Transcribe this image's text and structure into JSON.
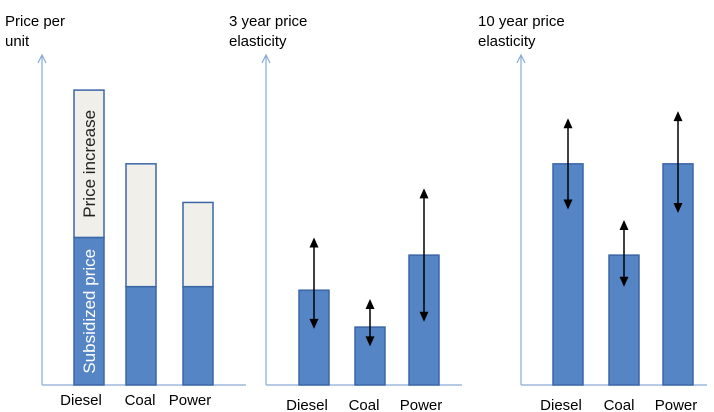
{
  "colors": {
    "bar_fill": "#5585c5",
    "bar_stroke": "#3b66a6",
    "increase_fill": "#f0efea",
    "axis": "#8aaad6",
    "arrow": "#000000",
    "inbar_text_light": "#ffffff",
    "inbar_text_dark": "#222222"
  },
  "chart_data": [
    {
      "type": "bar",
      "stacked": true,
      "ylabel": "Price per unit",
      "categories": [
        "Diesel",
        "Coal",
        "Power"
      ],
      "series": [
        {
          "name": "Subsidized price",
          "values": [
            4.2,
            2.8,
            2.8
          ]
        },
        {
          "name": "Price increase",
          "values": [
            4.2,
            3.5,
            2.4
          ]
        }
      ],
      "ylim": [
        0,
        9.4
      ],
      "grid": false
    },
    {
      "type": "bar",
      "ylabel": "3 year price elasticity",
      "categories": [
        "Diesel",
        "Coal",
        "Power"
      ],
      "values": [
        2.7,
        1.65,
        3.7
      ],
      "ranges": [
        [
          1.6,
          4.2
        ],
        [
          1.1,
          2.45
        ],
        [
          1.8,
          5.6
        ]
      ],
      "ylim": [
        0,
        9.4
      ],
      "grid": false
    },
    {
      "type": "bar",
      "ylabel": "10 year price elasticity",
      "categories": [
        "Diesel",
        "Coal",
        "Power"
      ],
      "values": [
        6.3,
        3.7,
        6.3
      ],
      "ranges": [
        [
          5.0,
          7.6
        ],
        [
          2.8,
          4.7
        ],
        [
          4.9,
          7.8
        ]
      ],
      "ylim": [
        0,
        9.4
      ],
      "grid": false
    }
  ]
}
